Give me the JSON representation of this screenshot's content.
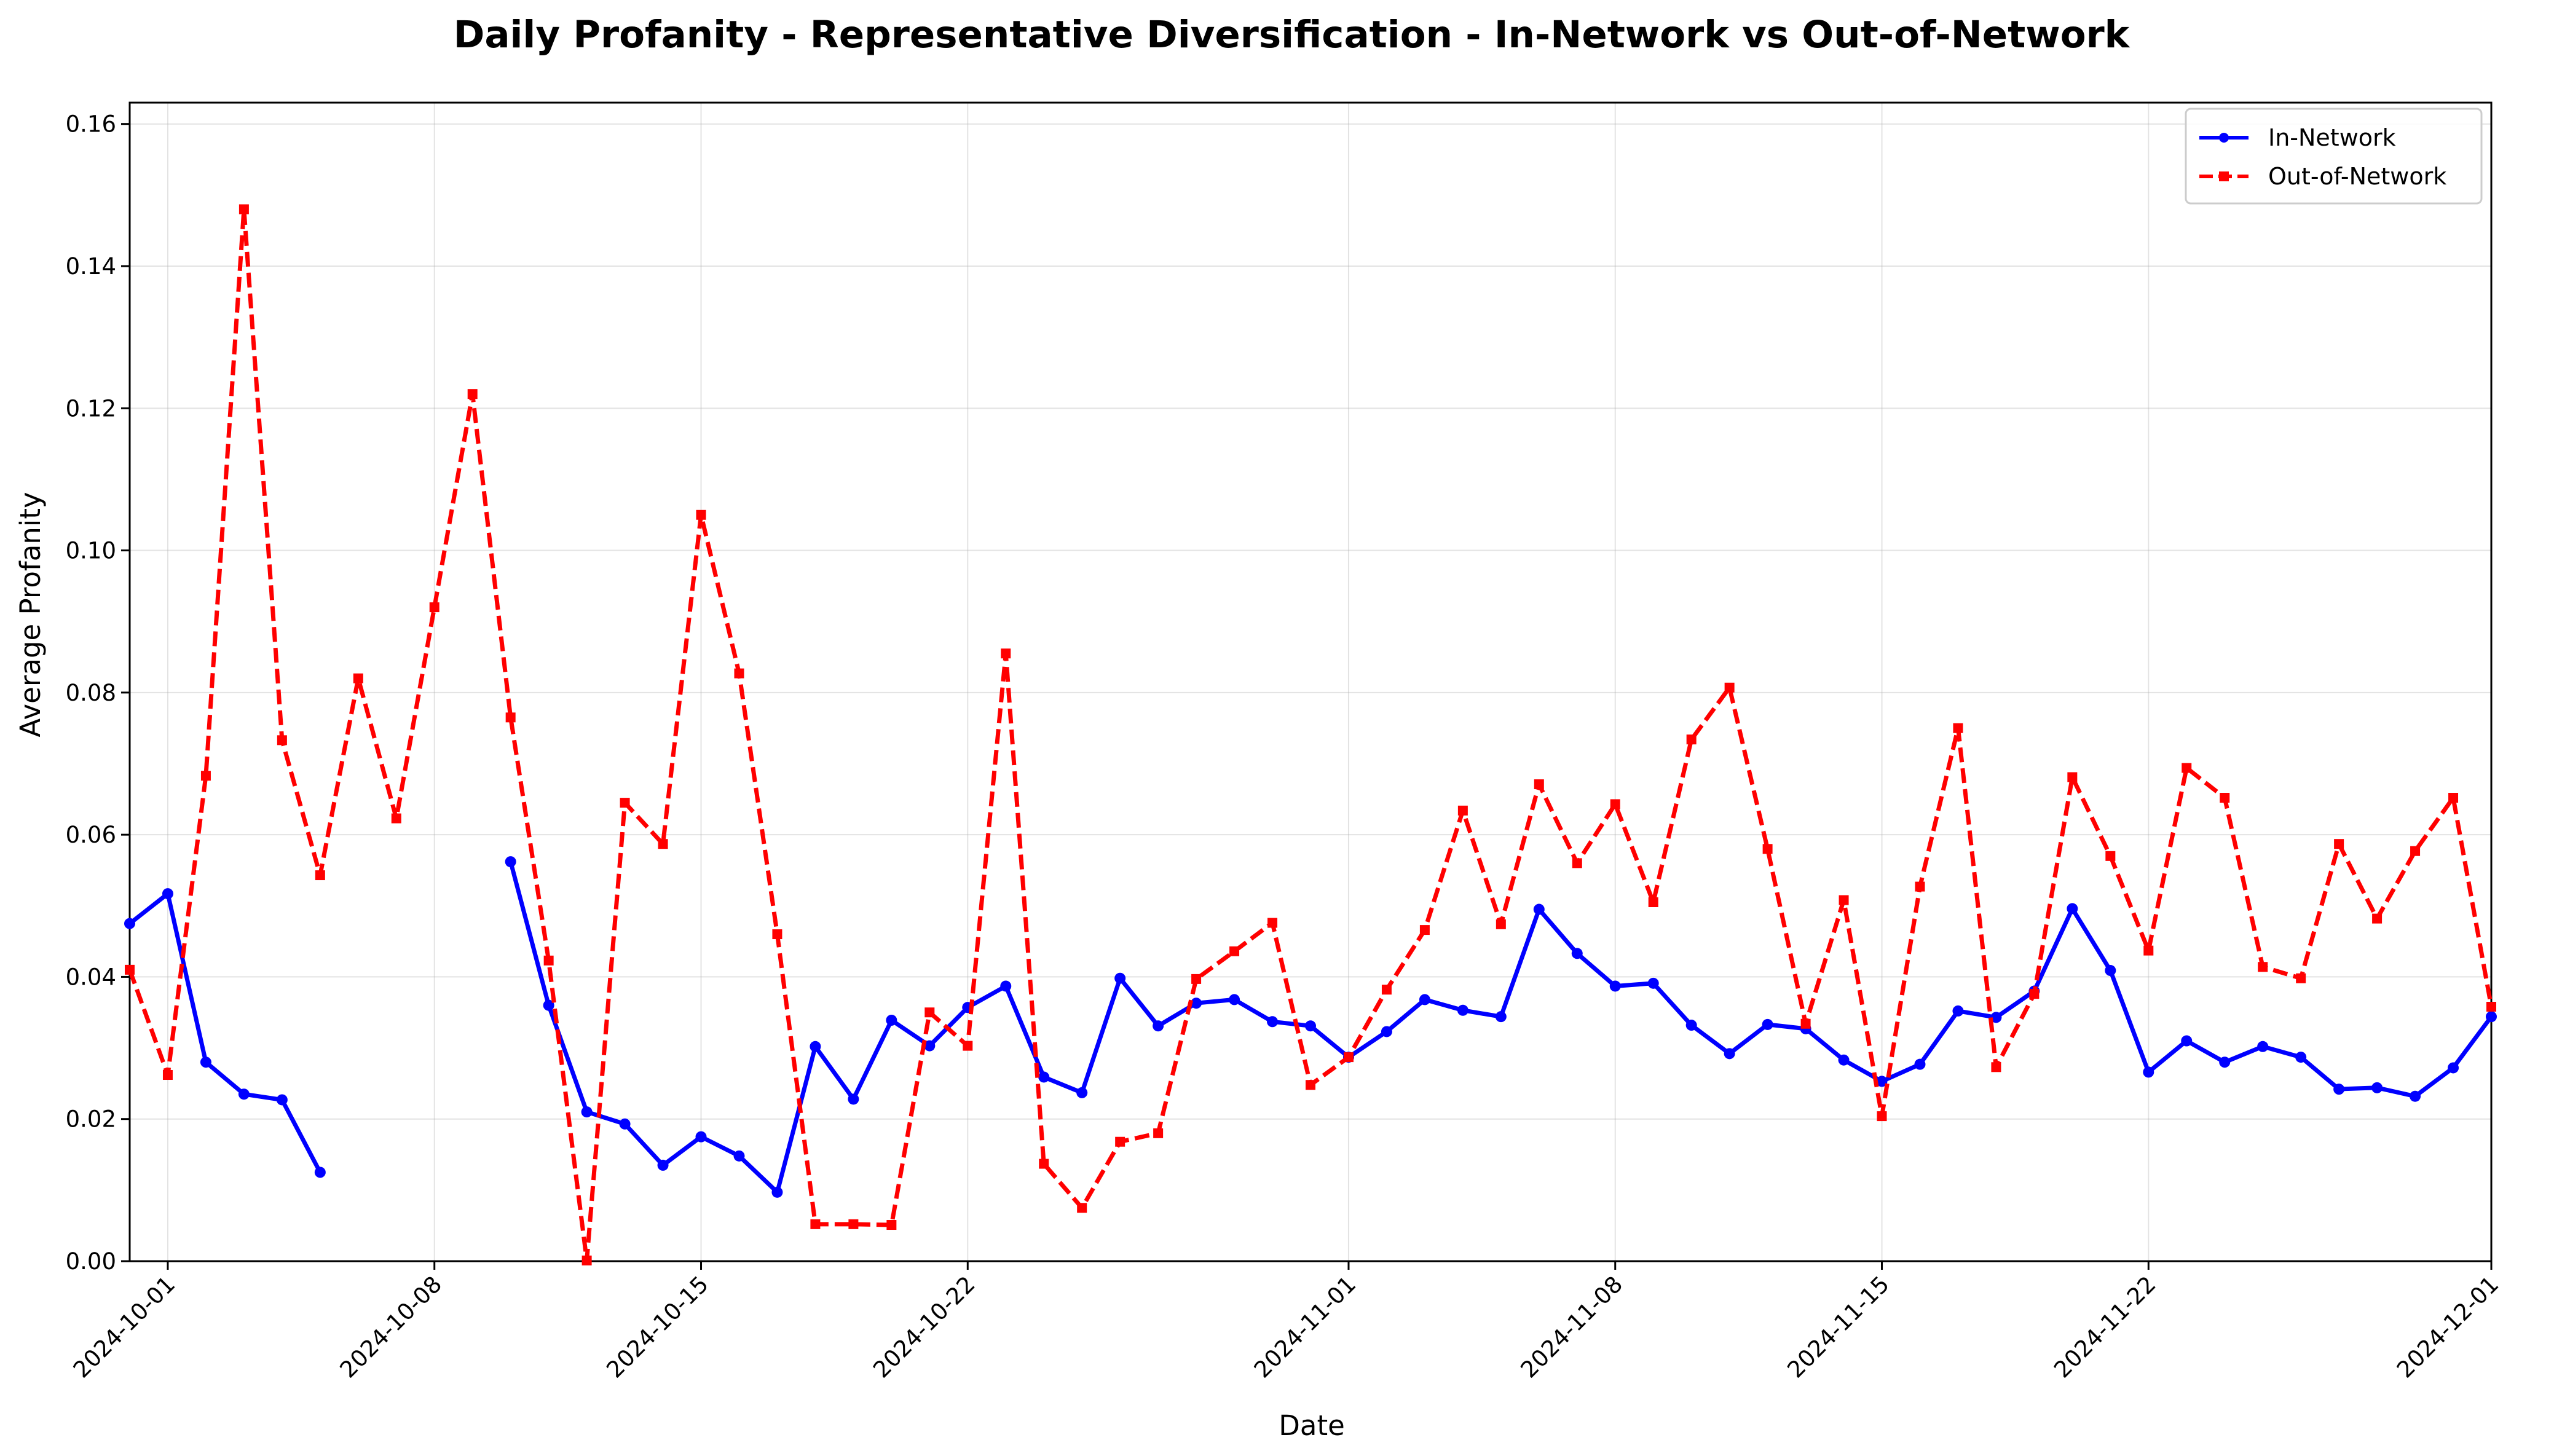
{
  "chart_data": {
    "type": "line",
    "title": "Daily Profanity - Representative Diversification - In-Network vs Out-of-Network",
    "xlabel": "Date",
    "ylabel": "Average Profanity",
    "xlim": [
      "2024-09-30",
      "2024-12-01"
    ],
    "ylim": [
      0,
      0.163
    ],
    "x_ticks": [
      "2024-10-01",
      "2024-10-08",
      "2024-10-15",
      "2024-10-22",
      "2024-11-01",
      "2024-11-08",
      "2024-11-15",
      "2024-11-22",
      "2024-12-01"
    ],
    "y_ticks": [
      "0.00",
      "0.02",
      "0.04",
      "0.06",
      "0.08",
      "0.10",
      "0.12",
      "0.14",
      "0.16"
    ],
    "grid": true,
    "legend_position": "top-right",
    "series": [
      {
        "name": "In-Network",
        "color": "#0000ff",
        "line_style": "solid",
        "marker": "circle",
        "points": [
          [
            "2024-09-30",
            0.0475
          ],
          [
            "2024-10-01",
            0.0517
          ],
          [
            "2024-10-02",
            0.028
          ],
          [
            "2024-10-03",
            0.0235
          ],
          [
            "2024-10-04",
            0.0227
          ],
          [
            "2024-10-05",
            0.0125
          ],
          [
            "2024-10-10",
            0.0562
          ],
          [
            "2024-10-11",
            0.036
          ],
          [
            "2024-10-12",
            0.021
          ],
          [
            "2024-10-13",
            0.0193
          ],
          [
            "2024-10-14",
            0.0135
          ],
          [
            "2024-10-15",
            0.0175
          ],
          [
            "2024-10-16",
            0.0148
          ],
          [
            "2024-10-17",
            0.0097
          ],
          [
            "2024-10-18",
            0.0302
          ],
          [
            "2024-10-19",
            0.0228
          ],
          [
            "2024-10-20",
            0.0339
          ],
          [
            "2024-10-21",
            0.0303
          ],
          [
            "2024-10-22",
            0.0357
          ],
          [
            "2024-10-23",
            0.0387
          ],
          [
            "2024-10-24",
            0.0259
          ],
          [
            "2024-10-25",
            0.0237
          ],
          [
            "2024-10-26",
            0.0398
          ],
          [
            "2024-10-27",
            0.0331
          ],
          [
            "2024-10-28",
            0.0363
          ],
          [
            "2024-10-29",
            0.0368
          ],
          [
            "2024-10-30",
            0.0337
          ],
          [
            "2024-10-31",
            0.0331
          ],
          [
            "2024-11-01",
            0.0287
          ],
          [
            "2024-11-02",
            0.0323
          ],
          [
            "2024-11-03",
            0.0368
          ],
          [
            "2024-11-04",
            0.0353
          ],
          [
            "2024-11-05",
            0.0344
          ],
          [
            "2024-11-06",
            0.0495
          ],
          [
            "2024-11-07",
            0.0433
          ],
          [
            "2024-11-08",
            0.0387
          ],
          [
            "2024-11-09",
            0.0391
          ],
          [
            "2024-11-10",
            0.0332
          ],
          [
            "2024-11-11",
            0.0292
          ],
          [
            "2024-11-12",
            0.0333
          ],
          [
            "2024-11-13",
            0.0327
          ],
          [
            "2024-11-14",
            0.0283
          ],
          [
            "2024-11-15",
            0.0253
          ],
          [
            "2024-11-16",
            0.0277
          ],
          [
            "2024-11-17",
            0.0352
          ],
          [
            "2024-11-18",
            0.0343
          ],
          [
            "2024-11-19",
            0.038
          ],
          [
            "2024-11-20",
            0.0496
          ],
          [
            "2024-11-21",
            0.0409
          ],
          [
            "2024-11-22",
            0.0266
          ],
          [
            "2024-11-23",
            0.031
          ],
          [
            "2024-11-24",
            0.028
          ],
          [
            "2024-11-25",
            0.0302
          ],
          [
            "2024-11-26",
            0.0287
          ],
          [
            "2024-11-27",
            0.0242
          ],
          [
            "2024-11-28",
            0.0244
          ],
          [
            "2024-11-29",
            0.0232
          ],
          [
            "2024-11-30",
            0.0272
          ],
          [
            "2024-12-01",
            0.0344
          ]
        ]
      },
      {
        "name": "Out-of-Network",
        "color": "#ff0000",
        "line_style": "dashed",
        "marker": "square",
        "points": [
          [
            "2024-09-30",
            0.041
          ],
          [
            "2024-10-01",
            0.0262
          ],
          [
            "2024-10-02",
            0.0683
          ],
          [
            "2024-10-03",
            0.148
          ],
          [
            "2024-10-04",
            0.0733
          ],
          [
            "2024-10-05",
            0.0543
          ],
          [
            "2024-10-06",
            0.082
          ],
          [
            "2024-10-07",
            0.0623
          ],
          [
            "2024-10-08",
            0.092
          ],
          [
            "2024-10-09",
            0.122
          ],
          [
            "2024-10-10",
            0.0765
          ],
          [
            "2024-10-11",
            0.0423
          ],
          [
            "2024-10-12",
            0.0001
          ],
          [
            "2024-10-13",
            0.0645
          ],
          [
            "2024-10-14",
            0.0587
          ],
          [
            "2024-10-15",
            0.105
          ],
          [
            "2024-10-16",
            0.0827
          ],
          [
            "2024-10-17",
            0.046
          ],
          [
            "2024-10-18",
            0.0052
          ],
          [
            "2024-10-19",
            0.0052
          ],
          [
            "2024-10-20",
            0.0051
          ],
          [
            "2024-10-21",
            0.035
          ],
          [
            "2024-10-22",
            0.0303
          ],
          [
            "2024-10-23",
            0.0855
          ],
          [
            "2024-10-24",
            0.0137
          ],
          [
            "2024-10-25",
            0.0075
          ],
          [
            "2024-10-26",
            0.0168
          ],
          [
            "2024-10-27",
            0.018
          ],
          [
            "2024-10-28",
            0.0397
          ],
          [
            "2024-10-29",
            0.0436
          ],
          [
            "2024-10-30",
            0.0476
          ],
          [
            "2024-10-31",
            0.0248
          ],
          [
            "2024-11-01",
            0.0287
          ],
          [
            "2024-11-02",
            0.0382
          ],
          [
            "2024-11-03",
            0.0466
          ],
          [
            "2024-11-04",
            0.0634
          ],
          [
            "2024-11-05",
            0.0474
          ],
          [
            "2024-11-06",
            0.0671
          ],
          [
            "2024-11-07",
            0.056
          ],
          [
            "2024-11-08",
            0.0643
          ],
          [
            "2024-11-09",
            0.0505
          ],
          [
            "2024-11-10",
            0.0734
          ],
          [
            "2024-11-11",
            0.0807
          ],
          [
            "2024-11-12",
            0.058
          ],
          [
            "2024-11-13",
            0.0334
          ],
          [
            "2024-11-14",
            0.0508
          ],
          [
            "2024-11-15",
            0.0204
          ],
          [
            "2024-11-16",
            0.0527
          ],
          [
            "2024-11-17",
            0.075
          ],
          [
            "2024-11-18",
            0.0273
          ],
          [
            "2024-11-19",
            0.0376
          ],
          [
            "2024-11-20",
            0.0681
          ],
          [
            "2024-11-21",
            0.057
          ],
          [
            "2024-11-22",
            0.0437
          ],
          [
            "2024-11-23",
            0.0694
          ],
          [
            "2024-11-24",
            0.0652
          ],
          [
            "2024-11-25",
            0.0414
          ],
          [
            "2024-11-26",
            0.0398
          ],
          [
            "2024-11-27",
            0.0587
          ],
          [
            "2024-11-28",
            0.0482
          ],
          [
            "2024-11-29",
            0.0577
          ],
          [
            "2024-11-30",
            0.0652
          ],
          [
            "2024-12-01",
            0.0358
          ]
        ]
      }
    ]
  }
}
